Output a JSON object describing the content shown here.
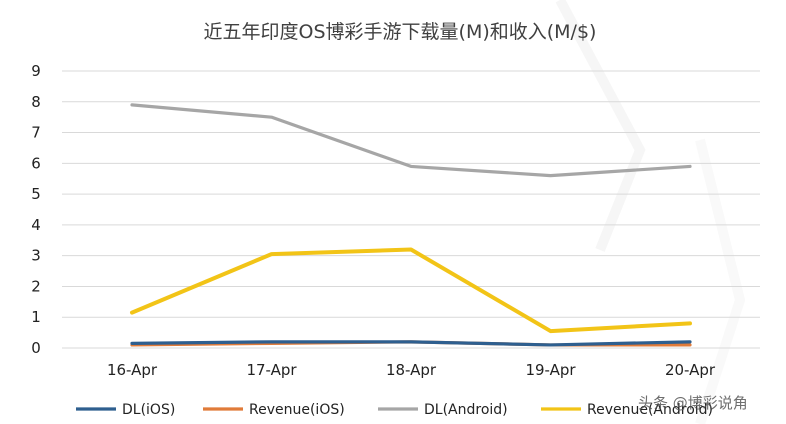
{
  "chart_data": {
    "type": "line",
    "title": "近五年印度OS博彩手游下载量(M)和收入(M/$)",
    "categories": [
      "16-Apr",
      "17-Apr",
      "18-Apr",
      "19-Apr",
      "20-Apr"
    ],
    "ylim": [
      0,
      9
    ],
    "yticks": [
      "0",
      "1",
      "2",
      "3",
      "4",
      "5",
      "6",
      "7",
      "8",
      "9"
    ],
    "grid": true,
    "legend_position": "bottom",
    "series": [
      {
        "name": "DL(iOS)",
        "color": "#2e5f8f",
        "values": [
          0.15,
          0.2,
          0.2,
          0.1,
          0.2
        ]
      },
      {
        "name": "Revenue(iOS)",
        "color": "#e07b39",
        "values": [
          0.1,
          0.15,
          0.2,
          0.1,
          0.1
        ]
      },
      {
        "name": "DL(Android)",
        "color": "#a6a6a6",
        "values": [
          7.9,
          7.5,
          5.9,
          5.6,
          5.9
        ]
      },
      {
        "name": "Revenue(Android)",
        "color": "#f2c417",
        "values": [
          1.15,
          3.05,
          3.2,
          0.55,
          0.8
        ]
      }
    ]
  },
  "watermark": {
    "text": "头条 @博彩说角"
  }
}
